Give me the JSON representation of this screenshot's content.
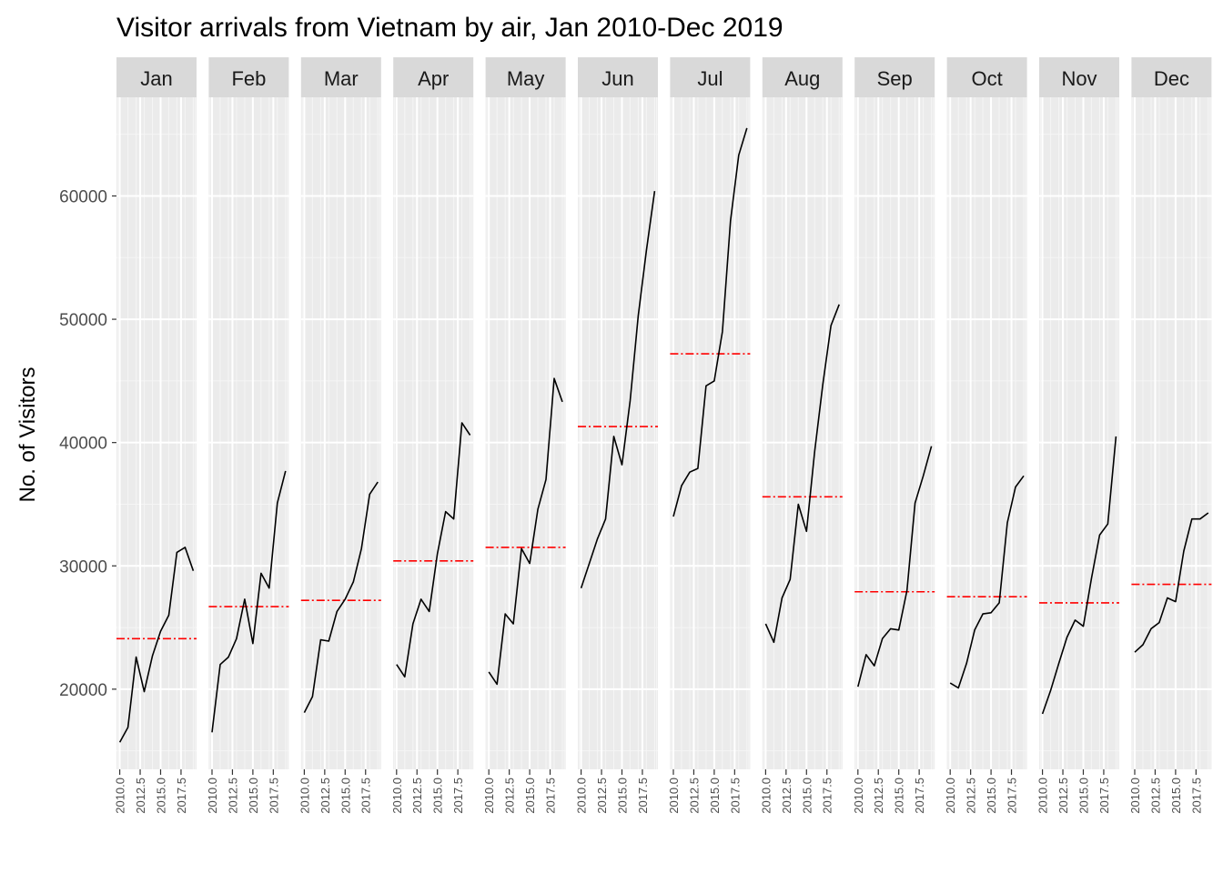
{
  "chart_data": {
    "type": "line",
    "title": "Visitor arrivals from Vietnam by air, Jan 2010-Dec 2019",
    "ylabel": "No. of Visitors",
    "xlabel": "",
    "ylim": [
      13500,
      68000
    ],
    "xlim": [
      2009.6,
      2019.4
    ],
    "y_ticks": [
      20000,
      30000,
      40000,
      50000,
      60000
    ],
    "y_tick_labels": [
      "20000",
      "30000",
      "40000",
      "50000",
      "60000"
    ],
    "x_ticks": [
      2010,
      2012.5,
      2015,
      2017.5
    ],
    "x_tick_labels": [
      "2010.0",
      "2012.5",
      "2015.0",
      "2017.5"
    ],
    "grid": true,
    "years": [
      2010,
      2011,
      2012,
      2013,
      2014,
      2015,
      2016,
      2017,
      2018,
      2019
    ],
    "mean_line_color": "#ff0000",
    "series_color": "#000000",
    "panel_background": "#ebebeb",
    "strip_background": "#d9d9d9",
    "panels": [
      {
        "month": "Jan",
        "values": [
          15700,
          16900,
          22600,
          19800,
          22700,
          24700,
          26000,
          31100,
          31500,
          29600
        ],
        "mean": 24100
      },
      {
        "month": "Feb",
        "values": [
          16500,
          22000,
          22600,
          24100,
          27300,
          23700,
          29400,
          28200,
          35100,
          37700
        ],
        "mean": 26700
      },
      {
        "month": "Mar",
        "values": [
          18100,
          19400,
          24000,
          23900,
          26300,
          27300,
          28700,
          31400,
          35800,
          36800
        ],
        "mean": 27200
      },
      {
        "month": "Apr",
        "values": [
          22000,
          21000,
          25300,
          27300,
          26300,
          31000,
          34400,
          33800,
          41600,
          40600
        ],
        "mean": 30400
      },
      {
        "month": "May",
        "values": [
          21400,
          20400,
          26100,
          25300,
          31400,
          30200,
          34600,
          37000,
          45200,
          43300
        ],
        "mean": 31500
      },
      {
        "month": "Jun",
        "values": [
          28200,
          30200,
          32200,
          33800,
          40500,
          38200,
          43400,
          50300,
          55600,
          60400
        ],
        "mean": 41300
      },
      {
        "month": "Jul",
        "values": [
          34000,
          36500,
          37600,
          37900,
          44600,
          45000,
          49000,
          58000,
          63300,
          65500
        ],
        "mean": 47200
      },
      {
        "month": "Aug",
        "values": [
          25300,
          23800,
          27400,
          28900,
          35000,
          32800,
          39300,
          44700,
          49500,
          51200
        ],
        "mean": 35600
      },
      {
        "month": "Sep",
        "values": [
          20200,
          22800,
          21900,
          24100,
          24900,
          24800,
          28000,
          35100,
          37300,
          39700
        ],
        "mean": 27900
      },
      {
        "month": "Oct",
        "values": [
          20500,
          20100,
          22100,
          24800,
          26100,
          26200,
          27000,
          33500,
          36400,
          37300
        ],
        "mean": 27500
      },
      {
        "month": "Nov",
        "values": [
          18000,
          19900,
          22100,
          24200,
          25600,
          25100,
          29000,
          32500,
          33400,
          40500
        ],
        "mean": 27000
      },
      {
        "month": "Dec",
        "values": [
          23000,
          23600,
          24900,
          25400,
          27400,
          27100,
          31200,
          33800,
          33800,
          34300
        ],
        "mean": 28500
      }
    ]
  }
}
